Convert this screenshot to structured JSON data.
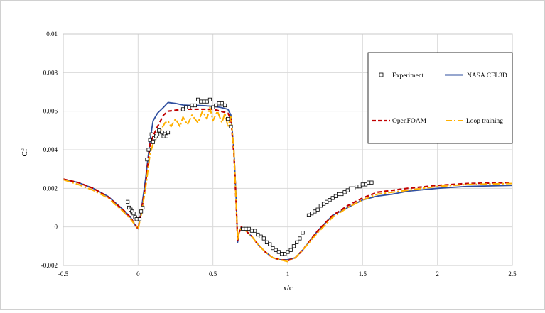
{
  "chart_data": {
    "type": "line",
    "xlabel": "x/c",
    "ylabel": "Cf",
    "xlim": [
      -0.5,
      2.5
    ],
    "ylim": [
      -0.002,
      0.01
    ],
    "x_ticks": [
      "-0.5",
      "0",
      "0.5",
      "1",
      "1.5",
      "2",
      "2.5"
    ],
    "y_ticks": [
      "-0.002",
      "0",
      "0.002",
      "0.004",
      "0.006",
      "0.008",
      "0.01"
    ],
    "grid": true,
    "legend_position": "top-right",
    "legend": {
      "experiment": "Experiment",
      "cfl3d": "NASA CFL3D",
      "openfoam": "OpenFOAM",
      "loop": "Loop training"
    },
    "colors": {
      "experiment": "#000000",
      "cfl3d": "#2f4f9f",
      "openfoam": "#c00000",
      "loop": "#ffb000"
    },
    "series": [
      {
        "key": "cfl3d",
        "name": "NASA CFL3D",
        "style": "solid",
        "x": [
          -0.5,
          -0.4,
          -0.3,
          -0.2,
          -0.1,
          -0.05,
          -0.02,
          0.0,
          0.02,
          0.05,
          0.08,
          0.1,
          0.13,
          0.17,
          0.2,
          0.25,
          0.3,
          0.35,
          0.4,
          0.45,
          0.5,
          0.55,
          0.6,
          0.62,
          0.64,
          0.655,
          0.665,
          0.675,
          0.69,
          0.72,
          0.76,
          0.8,
          0.85,
          0.9,
          0.95,
          1.0,
          1.05,
          1.1,
          1.2,
          1.3,
          1.4,
          1.5,
          1.6,
          1.7,
          1.8,
          2.0,
          2.2,
          2.5
        ],
        "y": [
          0.00248,
          0.0023,
          0.002,
          0.00158,
          0.0009,
          0.0005,
          0.0001,
          -0.0001,
          0.0008,
          0.0025,
          0.0045,
          0.0055,
          0.0059,
          0.0062,
          0.00645,
          0.0064,
          0.00632,
          0.0063,
          0.0063,
          0.00628,
          0.00625,
          0.0062,
          0.0061,
          0.0058,
          0.004,
          0.0015,
          -0.0008,
          -0.0003,
          0.0,
          -0.0002,
          -0.0005,
          -0.0009,
          -0.0013,
          -0.0016,
          -0.0017,
          -0.0017,
          -0.0016,
          -0.0012,
          -0.0002,
          0.0006,
          0.001,
          0.0014,
          0.0016,
          0.0017,
          0.00185,
          0.002,
          0.0021,
          0.00215
        ]
      },
      {
        "key": "openfoam",
        "name": "OpenFOAM",
        "style": "dashed",
        "x": [
          -0.5,
          -0.4,
          -0.3,
          -0.2,
          -0.1,
          -0.05,
          -0.02,
          0.0,
          0.02,
          0.05,
          0.08,
          0.1,
          0.13,
          0.17,
          0.2,
          0.25,
          0.3,
          0.35,
          0.4,
          0.45,
          0.5,
          0.55,
          0.6,
          0.62,
          0.64,
          0.655,
          0.665,
          0.675,
          0.69,
          0.72,
          0.76,
          0.8,
          0.85,
          0.9,
          0.95,
          1.0,
          1.05,
          1.1,
          1.2,
          1.3,
          1.4,
          1.5,
          1.6,
          1.7,
          1.8,
          2.0,
          2.2,
          2.5
        ],
        "y": [
          0.00248,
          0.0023,
          0.002,
          0.00155,
          0.00088,
          0.00048,
          0.00012,
          -0.0001,
          0.0007,
          0.0022,
          0.0043,
          0.0047,
          0.0052,
          0.0058,
          0.006,
          0.00605,
          0.0061,
          0.0061,
          0.0061,
          0.0061,
          0.0061,
          0.006,
          0.0059,
          0.0056,
          0.0038,
          0.0013,
          -0.0007,
          -0.0003,
          0.0,
          -0.0002,
          -0.0005,
          -0.0009,
          -0.0013,
          -0.0016,
          -0.0017,
          -0.00175,
          -0.0016,
          -0.0012,
          -0.0002,
          0.0006,
          0.0011,
          0.0015,
          0.0018,
          0.0019,
          0.002,
          0.00215,
          0.00225,
          0.0023
        ]
      },
      {
        "key": "loop",
        "name": "Loop training",
        "style": "dashdot",
        "x": [
          -0.5,
          -0.4,
          -0.3,
          -0.2,
          -0.1,
          -0.05,
          -0.02,
          0.0,
          0.02,
          0.05,
          0.08,
          0.1,
          0.12,
          0.15,
          0.18,
          0.2,
          0.22,
          0.25,
          0.28,
          0.3,
          0.33,
          0.36,
          0.4,
          0.43,
          0.46,
          0.48,
          0.5,
          0.53,
          0.56,
          0.58,
          0.6,
          0.62,
          0.64,
          0.655,
          0.665,
          0.675,
          0.69,
          0.72,
          0.76,
          0.8,
          0.85,
          0.9,
          0.95,
          1.0,
          1.05,
          1.1,
          1.2,
          1.3,
          1.4,
          1.5,
          1.6,
          1.7,
          1.8,
          2.0,
          2.2,
          2.5
        ],
        "y": [
          0.00245,
          0.0022,
          0.0019,
          0.0015,
          0.0008,
          0.0004,
          0.0001,
          -0.0001,
          0.0006,
          0.002,
          0.0038,
          0.0043,
          0.0046,
          0.005,
          0.0054,
          0.0055,
          0.0052,
          0.0056,
          0.0052,
          0.0057,
          0.0053,
          0.0058,
          0.0054,
          0.006,
          0.0056,
          0.0062,
          0.0055,
          0.006,
          0.0054,
          0.0059,
          0.0052,
          0.0057,
          0.004,
          0.0013,
          -0.0007,
          -0.0003,
          0.0,
          -0.0002,
          -0.0005,
          -0.0009,
          -0.0013,
          -0.0016,
          -0.0017,
          -0.0018,
          -0.0016,
          -0.0012,
          -0.0003,
          0.0005,
          0.001,
          0.0014,
          0.0017,
          0.0018,
          0.0019,
          0.0021,
          0.0022,
          0.00225
        ]
      }
    ],
    "experiment": {
      "key": "experiment",
      "name": "Experiment",
      "x": [
        -0.07,
        -0.06,
        -0.05,
        -0.04,
        -0.03,
        -0.02,
        -0.01,
        0.01,
        0.02,
        0.03,
        0.06,
        0.07,
        0.08,
        0.09,
        0.1,
        0.11,
        0.12,
        0.13,
        0.14,
        0.15,
        0.16,
        0.17,
        0.18,
        0.19,
        0.2,
        0.3,
        0.32,
        0.34,
        0.36,
        0.38,
        0.4,
        0.42,
        0.44,
        0.46,
        0.48,
        0.5,
        0.52,
        0.54,
        0.56,
        0.58,
        0.6,
        0.62,
        0.7,
        0.72,
        0.74,
        0.76,
        0.78,
        0.8,
        0.82,
        0.84,
        0.86,
        0.88,
        0.9,
        0.92,
        0.94,
        0.96,
        0.98,
        1.0,
        1.02,
        1.04,
        1.06,
        1.08,
        1.1,
        1.14,
        1.16,
        1.18,
        1.2,
        1.22,
        1.24,
        1.26,
        1.28,
        1.3,
        1.32,
        1.34,
        1.36,
        1.38,
        1.4,
        1.42,
        1.44,
        1.46,
        1.48,
        1.5,
        1.52,
        1.54,
        1.56
      ],
      "y": [
        0.0013,
        0.001,
        0.0009,
        0.0008,
        0.0007,
        0.0005,
        0.0004,
        0.0004,
        0.0008,
        0.001,
        0.0035,
        0.004,
        0.0045,
        0.0048,
        0.0044,
        0.0046,
        0.0047,
        0.0048,
        0.005,
        0.0048,
        0.0049,
        0.0047,
        0.0048,
        0.0047,
        0.0049,
        0.0061,
        0.0062,
        0.0062,
        0.0063,
        0.0063,
        0.0066,
        0.0065,
        0.0065,
        0.0065,
        0.0066,
        0.0062,
        0.0063,
        0.0064,
        0.0064,
        0.0063,
        0.0056,
        0.0052,
        -0.0001,
        -0.0001,
        -0.0001,
        -0.0002,
        -0.0002,
        -0.0004,
        -0.0005,
        -0.0006,
        -0.0008,
        -0.0009,
        -0.0011,
        -0.0012,
        -0.0013,
        -0.0014,
        -0.0014,
        -0.0013,
        -0.0012,
        -0.001,
        -0.0008,
        -0.0006,
        -0.0003,
        0.0006,
        0.0007,
        0.0008,
        0.0009,
        0.0011,
        0.0012,
        0.0013,
        0.0014,
        0.0015,
        0.0016,
        0.0017,
        0.0017,
        0.0018,
        0.0019,
        0.002,
        0.002,
        0.0021,
        0.0021,
        0.0022,
        0.0022,
        0.0023,
        0.0023
      ]
    }
  }
}
